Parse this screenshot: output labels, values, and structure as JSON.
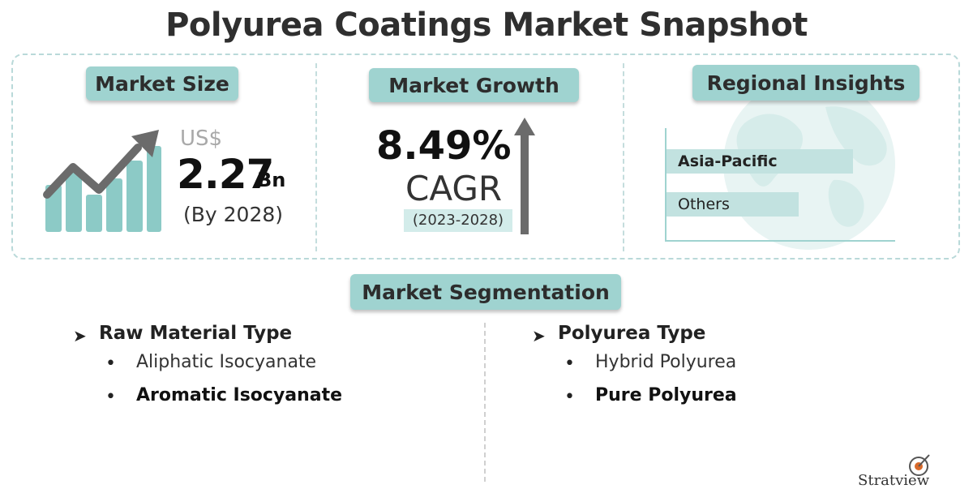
{
  "title": "Polyurea Coatings Market Snapshot",
  "market_size": {
    "heading": "Market Size",
    "currency": "US$",
    "value": "2.27",
    "unit": "Bn",
    "year_note": "(By 2028)"
  },
  "market_growth": {
    "heading": "Market Growth",
    "value": "8.49%",
    "label": "CAGR",
    "period": "(2023-2028)"
  },
  "regional_insights": {
    "heading": "Regional Insights",
    "bars": [
      {
        "label": "Asia-Pacific",
        "relative_length": 1.0,
        "bold": true
      },
      {
        "label": "Others",
        "relative_length": 0.71,
        "bold": false
      }
    ]
  },
  "segmentation": {
    "heading": "Market Segmentation",
    "groups": [
      {
        "title": "Raw Material Type",
        "items": [
          {
            "label": "Aliphatic Isocyanate",
            "bold": false
          },
          {
            "label": "Aromatic Isocyanate",
            "bold": true
          }
        ]
      },
      {
        "title": "Polyurea Type",
        "items": [
          {
            "label": "Hybrid Polyurea",
            "bold": false
          },
          {
            "label": "Pure Polyurea",
            "bold": true
          }
        ]
      }
    ]
  },
  "logo": {
    "text": "Stratview"
  },
  "colors": {
    "accent": "#9fd3d0",
    "bar_fill": "#c2e2e0",
    "chart_bars": "#7ec5c1",
    "growth_arrow": "#6b6b6b",
    "globe": "#e4f2f1"
  },
  "icons": {
    "market_size": "growth-bar-chart-icon",
    "market_growth": "up-arrow-icon",
    "regional": "globe-icon",
    "list_marker": "arrow-marker-icon",
    "logo": "stratview-logo-icon"
  }
}
